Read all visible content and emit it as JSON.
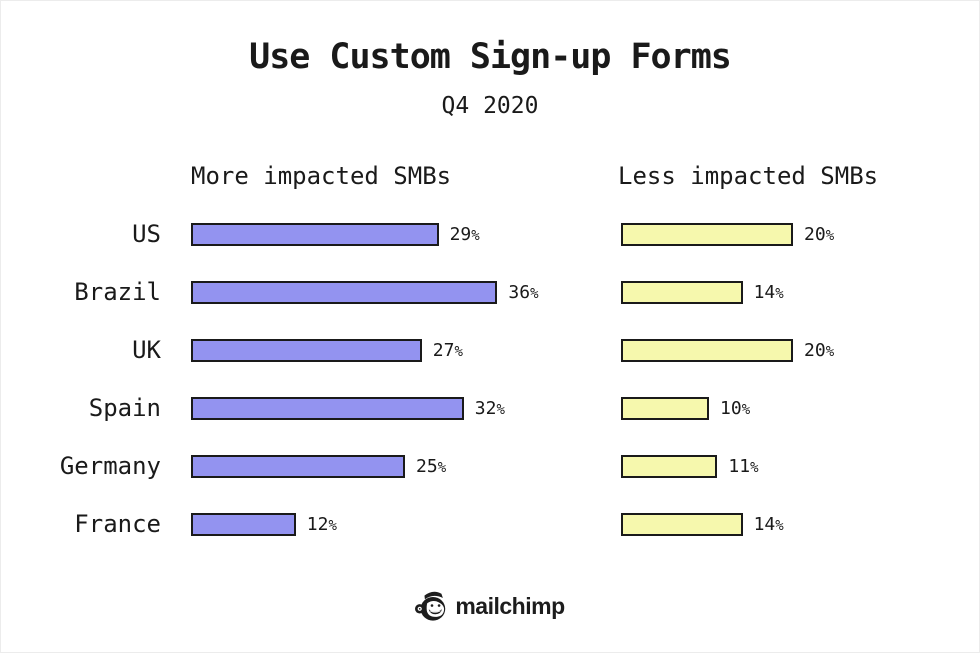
{
  "chart_data": {
    "type": "bar",
    "orientation": "horizontal",
    "title": "Use Custom Sign-up Forms",
    "subtitle": "Q4 2020",
    "categories": [
      "US",
      "Brazil",
      "UK",
      "Spain",
      "Germany",
      "France"
    ],
    "series": [
      {
        "name": "More impacted SMBs",
        "values": [
          29,
          36,
          27,
          32,
          25,
          12
        ],
        "color": "#9393f0"
      },
      {
        "name": "Less impacted SMBs",
        "values": [
          20,
          14,
          20,
          10,
          11,
          14
        ],
        "color": "#f6f8ad"
      }
    ],
    "value_suffix": "%",
    "xlim": [
      0,
      40
    ],
    "bar_border_color": "#1a1a1a",
    "grid": false,
    "legend_position": "column-headers"
  },
  "footer": {
    "logo_text": "mailchimp"
  }
}
